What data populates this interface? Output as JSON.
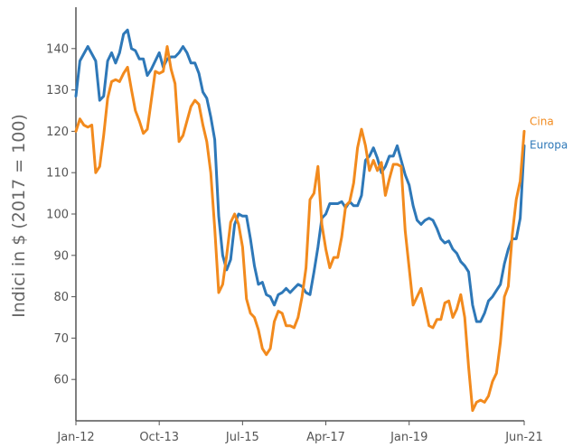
{
  "chart_data": {
    "type": "line",
    "title": "",
    "xlabel": "",
    "ylabel": "Indici in $ (2017 = 100)",
    "ylim": [
      50,
      150
    ],
    "yticks": [
      60,
      70,
      80,
      90,
      100,
      110,
      120,
      130,
      140
    ],
    "xlim": [
      "2012-01",
      "2021-06"
    ],
    "xticks": [
      {
        "label": "Jan-12",
        "x": "2012-01"
      },
      {
        "label": "Oct-13",
        "x": "2013-10"
      },
      {
        "label": "Jul-15",
        "x": "2015-07"
      },
      {
        "label": "Apr-17",
        "x": "2017-04"
      },
      {
        "label": "Jan-19",
        "x": "2019-01"
      },
      {
        "label": "Jun-21",
        "x": "2021-06"
      }
    ],
    "grid": false,
    "legend": "inline labels at line ends (right)",
    "series": [
      {
        "name": "Europa",
        "color": "#2e78b8",
        "points": [
          [
            "2012-01",
            128.5
          ],
          [
            "2012-02",
            137
          ],
          [
            "2012-04",
            140.5
          ],
          [
            "2012-06",
            137
          ],
          [
            "2012-07",
            127.5
          ],
          [
            "2012-08",
            128.5
          ],
          [
            "2012-09",
            137
          ],
          [
            "2012-10",
            139
          ],
          [
            "2012-11",
            136.5
          ],
          [
            "2012-12",
            139
          ],
          [
            "2013-01",
            143.5
          ],
          [
            "2013-02",
            144.5
          ],
          [
            "2013-03",
            140
          ],
          [
            "2013-04",
            139.5
          ],
          [
            "2013-05",
            137.5
          ],
          [
            "2013-06",
            137.5
          ],
          [
            "2013-07",
            133.5
          ],
          [
            "2013-08",
            135
          ],
          [
            "2013-09",
            137
          ],
          [
            "2013-10",
            139
          ],
          [
            "2013-11",
            135.5
          ],
          [
            "2013-12",
            137.5
          ],
          [
            "2014-01",
            138
          ],
          [
            "2014-02",
            138
          ],
          [
            "2014-03",
            139
          ],
          [
            "2014-04",
            140.5
          ],
          [
            "2014-05",
            139
          ],
          [
            "2014-06",
            136.5
          ],
          [
            "2014-07",
            136.5
          ],
          [
            "2014-08",
            134
          ],
          [
            "2014-09",
            129.5
          ],
          [
            "2014-10",
            128
          ],
          [
            "2014-11",
            123.5
          ],
          [
            "2014-12",
            118
          ],
          [
            "2015-01",
            99.5
          ],
          [
            "2015-02",
            90
          ],
          [
            "2015-03",
            86.5
          ],
          [
            "2015-04",
            89
          ],
          [
            "2015-05",
            97.5
          ],
          [
            "2015-06",
            100
          ],
          [
            "2015-07",
            99.5
          ],
          [
            "2015-08",
            99.5
          ],
          [
            "2015-09",
            94
          ],
          [
            "2015-10",
            87.5
          ],
          [
            "2015-11",
            83
          ],
          [
            "2015-12",
            83.5
          ],
          [
            "2016-01",
            80.5
          ],
          [
            "2016-02",
            80
          ],
          [
            "2016-03",
            78
          ],
          [
            "2016-04",
            80.5
          ],
          [
            "2016-05",
            81
          ],
          [
            "2016-06",
            82
          ],
          [
            "2016-07",
            81
          ],
          [
            "2016-08",
            82
          ],
          [
            "2016-09",
            83
          ],
          [
            "2016-10",
            82.5
          ],
          [
            "2016-11",
            81
          ],
          [
            "2016-12",
            80.5
          ],
          [
            "2017-01",
            86
          ],
          [
            "2017-02",
            92
          ],
          [
            "2017-03",
            99
          ],
          [
            "2017-04",
            100
          ],
          [
            "2017-05",
            102.5
          ],
          [
            "2017-06",
            102.5
          ],
          [
            "2017-07",
            102.5
          ],
          [
            "2017-08",
            103
          ],
          [
            "2017-09",
            101.5
          ],
          [
            "2017-10",
            103
          ],
          [
            "2017-11",
            102
          ],
          [
            "2017-12",
            102
          ],
          [
            "2018-01",
            104.5
          ],
          [
            "2018-02",
            113
          ],
          [
            "2018-03",
            114
          ],
          [
            "2018-04",
            116
          ],
          [
            "2018-05",
            113.5
          ],
          [
            "2018-06",
            110
          ],
          [
            "2018-07",
            111.5
          ],
          [
            "2018-08",
            114
          ],
          [
            "2018-09",
            114
          ],
          [
            "2018-10",
            116.5
          ],
          [
            "2018-11",
            113
          ],
          [
            "2018-12",
            109.5
          ],
          [
            "2019-01",
            107
          ],
          [
            "2019-02",
            102
          ],
          [
            "2019-03",
            98.5
          ],
          [
            "2019-04",
            97.5
          ],
          [
            "2019-05",
            98.5
          ],
          [
            "2019-06",
            99
          ],
          [
            "2019-07",
            98.5
          ],
          [
            "2019-08",
            96.5
          ],
          [
            "2019-09",
            94
          ],
          [
            "2019-10",
            93
          ],
          [
            "2019-11",
            93.5
          ],
          [
            "2019-12",
            91.5
          ],
          [
            "2020-01",
            90.5
          ],
          [
            "2020-02",
            88.5
          ],
          [
            "2020-03",
            87.5
          ],
          [
            "2020-04",
            86
          ],
          [
            "2020-05",
            78
          ],
          [
            "2020-06",
            74
          ],
          [
            "2020-07",
            74
          ],
          [
            "2020-08",
            76
          ],
          [
            "2020-09",
            79
          ],
          [
            "2020-10",
            80
          ],
          [
            "2020-11",
            81.5
          ],
          [
            "2020-12",
            83
          ],
          [
            "2021-01",
            88
          ],
          [
            "2021-02",
            91.5
          ],
          [
            "2021-03",
            94
          ],
          [
            "2021-04",
            94
          ],
          [
            "2021-05",
            99
          ],
          [
            "2021-06",
            116.5
          ]
        ]
      },
      {
        "name": "Cina",
        "color": "#f28a1d",
        "points": [
          [
            "2012-01",
            120
          ],
          [
            "2012-02",
            123
          ],
          [
            "2012-03",
            121.5
          ],
          [
            "2012-04",
            121
          ],
          [
            "2012-05",
            121.5
          ],
          [
            "2012-06",
            110
          ],
          [
            "2012-07",
            111.5
          ],
          [
            "2012-08",
            119
          ],
          [
            "2012-09",
            128
          ],
          [
            "2012-10",
            132
          ],
          [
            "2012-11",
            132.5
          ],
          [
            "2012-12",
            132
          ],
          [
            "2013-01",
            134
          ],
          [
            "2013-02",
            135.5
          ],
          [
            "2013-03",
            130
          ],
          [
            "2013-04",
            125
          ],
          [
            "2013-05",
            122.5
          ],
          [
            "2013-06",
            119.5
          ],
          [
            "2013-07",
            120.5
          ],
          [
            "2013-08",
            127.5
          ],
          [
            "2013-09",
            134.5
          ],
          [
            "2013-10",
            134
          ],
          [
            "2013-11",
            134.5
          ],
          [
            "2013-12",
            140.5
          ],
          [
            "2014-01",
            135
          ],
          [
            "2014-02",
            131.5
          ],
          [
            "2014-03",
            117.5
          ],
          [
            "2014-04",
            119
          ],
          [
            "2014-05",
            122.5
          ],
          [
            "2014-06",
            126
          ],
          [
            "2014-07",
            127.5
          ],
          [
            "2014-08",
            126.5
          ],
          [
            "2014-09",
            121.5
          ],
          [
            "2014-10",
            117.5
          ],
          [
            "2014-11",
            110
          ],
          [
            "2014-12",
            96.5
          ],
          [
            "2015-01",
            81
          ],
          [
            "2015-02",
            83
          ],
          [
            "2015-03",
            90
          ],
          [
            "2015-04",
            98
          ],
          [
            "2015-05",
            100
          ],
          [
            "2015-06",
            97.5
          ],
          [
            "2015-07",
            92
          ],
          [
            "2015-08",
            79.5
          ],
          [
            "2015-09",
            76
          ],
          [
            "2015-10",
            75
          ],
          [
            "2015-11",
            72
          ],
          [
            "2015-12",
            67.5
          ],
          [
            "2016-01",
            66
          ],
          [
            "2016-02",
            67.5
          ],
          [
            "2016-03",
            74
          ],
          [
            "2016-04",
            76.5
          ],
          [
            "2016-05",
            76
          ],
          [
            "2016-06",
            73
          ],
          [
            "2016-07",
            73
          ],
          [
            "2016-08",
            72.5
          ],
          [
            "2016-09",
            75
          ],
          [
            "2016-10",
            80
          ],
          [
            "2016-11",
            87
          ],
          [
            "2016-12",
            103.5
          ],
          [
            "2017-01",
            105
          ],
          [
            "2017-02",
            111.5
          ],
          [
            "2017-03",
            97.5
          ],
          [
            "2017-04",
            91.5
          ],
          [
            "2017-05",
            87
          ],
          [
            "2017-06",
            89.5
          ],
          [
            "2017-07",
            89.5
          ],
          [
            "2017-08",
            94.5
          ],
          [
            "2017-09",
            102
          ],
          [
            "2017-10",
            103
          ],
          [
            "2017-11",
            107.5
          ],
          [
            "2017-12",
            116
          ],
          [
            "2018-01",
            120.5
          ],
          [
            "2018-02",
            116.5
          ],
          [
            "2018-03",
            110.5
          ],
          [
            "2018-04",
            113
          ],
          [
            "2018-05",
            110.5
          ],
          [
            "2018-06",
            112.5
          ],
          [
            "2018-07",
            104.5
          ],
          [
            "2018-08",
            108.5
          ],
          [
            "2018-09",
            112
          ],
          [
            "2018-10",
            112
          ],
          [
            "2018-11",
            111.5
          ],
          [
            "2018-12",
            96
          ],
          [
            "2019-01",
            87
          ],
          [
            "2019-02",
            78
          ],
          [
            "2019-03",
            80
          ],
          [
            "2019-04",
            82
          ],
          [
            "2019-05",
            77.5
          ],
          [
            "2019-06",
            73
          ],
          [
            "2019-07",
            72.5
          ],
          [
            "2019-08",
            74.5
          ],
          [
            "2019-09",
            74.5
          ],
          [
            "2019-10",
            78.5
          ],
          [
            "2019-11",
            79
          ],
          [
            "2019-12",
            75
          ],
          [
            "2020-01",
            77
          ],
          [
            "2020-02",
            80.5
          ],
          [
            "2020-03",
            75
          ],
          [
            "2020-04",
            63
          ],
          [
            "2020-05",
            52.5
          ],
          [
            "2020-06",
            54.5
          ],
          [
            "2020-07",
            55
          ],
          [
            "2020-08",
            54.5
          ],
          [
            "2020-09",
            56
          ],
          [
            "2020-10",
            59.5
          ],
          [
            "2020-11",
            61.5
          ],
          [
            "2020-12",
            69
          ],
          [
            "2021-01",
            80
          ],
          [
            "2021-02",
            82.5
          ],
          [
            "2021-03",
            95
          ],
          [
            "2021-04",
            103.5
          ],
          [
            "2021-05",
            108
          ],
          [
            "2021-06",
            120
          ]
        ]
      }
    ]
  },
  "colors": {
    "axis": "#555555",
    "text": "#555555"
  }
}
